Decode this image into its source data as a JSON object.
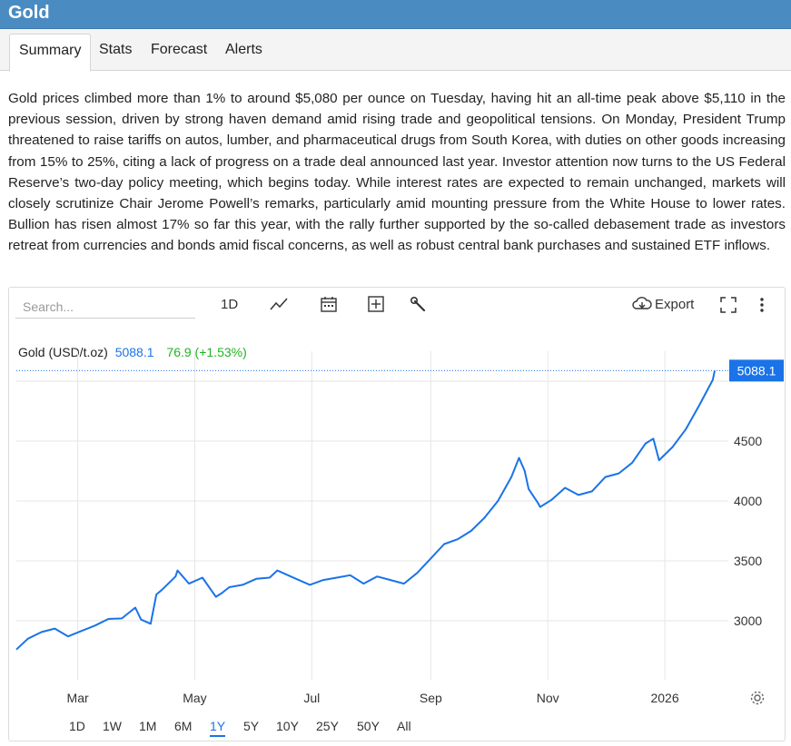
{
  "window": {
    "title": "Gold"
  },
  "tabs": [
    "Summary",
    "Stats",
    "Forecast",
    "Alerts"
  ],
  "summary_text": "Gold prices climbed more than 1% to around $5,080 per ounce on Tuesday, having hit an all-time peak above $5,110 in the previous session, driven by strong haven demand amid rising trade and geopolitical tensions. On Monday, President Trump threatened to raise tariffs on autos, lumber, and pharmaceutical drugs from South Korea, with duties on other goods increasing from 15% to 25%, citing a lack of progress on a trade deal announced last year. Investor attention now turns to the US Federal Reserve’s two-day policy meeting, which begins today. While interest rates are expected to remain unchanged, markets will closely scrutinize Chair Jerome Powell’s remarks, particularly amid mounting pressure from the White House to lower rates. Bullion has risen almost 17% so far this year, with the rally further supported by the so-called debasement trade as investors retreat from currencies and bonds amid fiscal concerns, as well as robust central bank purchases and sustained ETF inflows.",
  "toolbar": {
    "search_placeholder": "Search...",
    "interval": "1D",
    "export_label": "Export",
    "icons": [
      "line-chart-icon",
      "calendar-icon",
      "add-indicator-icon",
      "wrench-icon",
      "download-cloud-icon",
      "fullscreen-icon",
      "more-icon"
    ]
  },
  "legend": {
    "name": "Gold (USD/t.oz)",
    "last": "5088.1",
    "change": "76.9 (+1.53%)",
    "last_color": "#1a73e8",
    "change_color": "#22b322"
  },
  "ranges": [
    "1D",
    "1W",
    "1M",
    "6M",
    "1Y",
    "5Y",
    "10Y",
    "25Y",
    "50Y",
    "All"
  ],
  "active_range": "1Y",
  "colors": {
    "accent": "#1a73e8",
    "titlebar": "#4a8bc2"
  },
  "chart_data": {
    "type": "line",
    "series": [
      {
        "name": "Gold (USD/t.oz)",
        "x": [
          "2025-01-28",
          "2025-02-03",
          "2025-02-10",
          "2025-02-17",
          "2025-02-24",
          "2025-03-03",
          "2025-03-10",
          "2025-03-17",
          "2025-03-24",
          "2025-03-31",
          "2025-04-03",
          "2025-04-08",
          "2025-04-11",
          "2025-04-14",
          "2025-04-21",
          "2025-04-22",
          "2025-04-28",
          "2025-05-05",
          "2025-05-12",
          "2025-05-15",
          "2025-05-19",
          "2025-05-26",
          "2025-06-02",
          "2025-06-09",
          "2025-06-13",
          "2025-06-20",
          "2025-06-30",
          "2025-07-07",
          "2025-07-14",
          "2025-07-21",
          "2025-07-28",
          "2025-08-04",
          "2025-08-11",
          "2025-08-18",
          "2025-08-25",
          "2025-09-01",
          "2025-09-08",
          "2025-09-15",
          "2025-09-22",
          "2025-09-29",
          "2025-10-06",
          "2025-10-13",
          "2025-10-17",
          "2025-10-20",
          "2025-10-22",
          "2025-10-27",
          "2025-10-28",
          "2025-11-03",
          "2025-11-10",
          "2025-11-17",
          "2025-11-24",
          "2025-12-01",
          "2025-12-08",
          "2025-12-15",
          "2025-12-22",
          "2025-12-26",
          "2025-12-29",
          "2026-01-05",
          "2026-01-12",
          "2026-01-19",
          "2026-01-26",
          "2026-01-27"
        ],
        "values": [
          2760,
          2850,
          2905,
          2935,
          2870,
          2915,
          2960,
          3015,
          3020,
          3110,
          3010,
          2975,
          3220,
          3260,
          3370,
          3420,
          3310,
          3360,
          3200,
          3230,
          3280,
          3300,
          3350,
          3360,
          3420,
          3370,
          3300,
          3340,
          3360,
          3380,
          3310,
          3370,
          3340,
          3310,
          3400,
          3520,
          3640,
          3680,
          3750,
          3860,
          4000,
          4200,
          4360,
          4250,
          4100,
          3980,
          3950,
          4010,
          4110,
          4050,
          4080,
          4200,
          4230,
          4320,
          4480,
          4520,
          4340,
          4450,
          4600,
          4800,
          5011,
          5088.1
        ]
      }
    ],
    "x_ticks": [
      "Mar",
      "May",
      "Jul",
      "Sep",
      "Nov",
      "2026"
    ],
    "y_ticks": [
      3000,
      3500,
      4000,
      4500
    ],
    "ylim": [
      2600,
      5100
    ],
    "last_value_label": "5088.1",
    "grid": true
  }
}
